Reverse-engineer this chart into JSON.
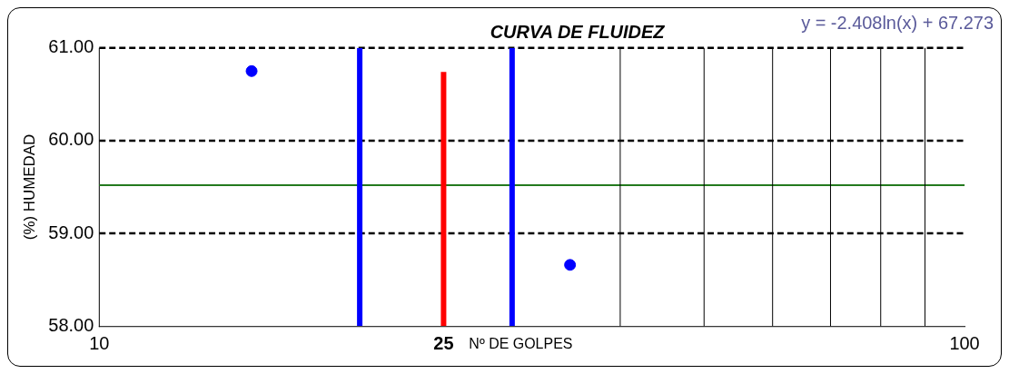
{
  "chart_data": {
    "type": "scatter",
    "title": "CURVA DE FLUIDEZ",
    "xlabel": "Nº DE GOLPES",
    "ylabel": "(%) HUMEDAD",
    "annotations": [
      "y = -2.408ln(x) + 67.273"
    ],
    "log": "x",
    "xlim": [
      10,
      100
    ],
    "xticks": [
      10,
      25,
      100
    ],
    "ylim": [
      58,
      61
    ],
    "yticks": [
      {
        "value": 58,
        "label": "58.00"
      },
      {
        "value": 59,
        "label": "59.00"
      },
      {
        "value": 60,
        "label": "60.00"
      },
      {
        "value": 61,
        "label": "61.00"
      }
    ],
    "grid": "y",
    "legend": false,
    "marker": "circle",
    "series": [
      {
        "color": "#0000ff",
        "x": [
          15,
          35
        ],
        "values": [
          60.75,
          58.66
        ]
      },
      {
        "type": "line",
        "color": "#0000ff",
        "x": [
          20,
          20
        ],
        "values": [
          58,
          61
        ],
        "marker": "none"
      },
      {
        "type": "line",
        "color": "#ff0000",
        "x": [
          25,
          25
        ],
        "values": [
          58,
          60.74
        ],
        "marker": "none"
      },
      {
        "type": "line",
        "color": "#0000ff",
        "x": [
          30,
          30
        ],
        "values": [
          58,
          61
        ],
        "marker": "none"
      }
    ],
    "ref_lines": [
      {
        "axis": "y",
        "value": 59.52,
        "color": "#237a1e"
      },
      {
        "axis": "x",
        "value": 40,
        "color": "#000000"
      },
      {
        "axis": "x",
        "value": 50,
        "color": "#000000"
      },
      {
        "axis": "x",
        "value": 60,
        "color": "#000000"
      },
      {
        "axis": "x",
        "value": 70,
        "color": "#000000"
      },
      {
        "axis": "x",
        "value": 80,
        "color": "#000000"
      },
      {
        "axis": "x",
        "value": 90,
        "color": "#000000"
      }
    ]
  }
}
